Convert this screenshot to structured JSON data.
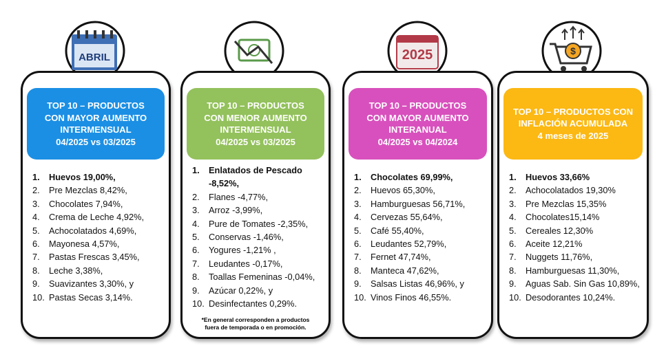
{
  "cards": [
    {
      "icon_label": "ABRIL",
      "header": [
        "TOP 10 – PRODUCTOS",
        "CON MAYOR AUMENTO",
        "INTERMENSUAL",
        "04/2025 vs  03/2025"
      ],
      "items": [
        {
          "n": "1.",
          "text": "Huevos 19,00%,"
        },
        {
          "n": "2.",
          "text": "Pre Mezclas 8,42%,"
        },
        {
          "n": "3.",
          "text": "Chocolates 7,94%,"
        },
        {
          "n": "4.",
          "text": "Crema de Leche 4,92%,"
        },
        {
          "n": "5.",
          "text": "Achocolatados 4,69%,"
        },
        {
          "n": "6.",
          "text": "Mayonesa 4,57%,"
        },
        {
          "n": "7.",
          "text": "Pastas Frescas 3,45%,"
        },
        {
          "n": "8.",
          "text": "Leche 3,38%,"
        },
        {
          "n": "9.",
          "text": "Suavizantes 3,30%, y"
        },
        {
          "n": "10.",
          "text": "Pastas Secas 3,14%."
        }
      ]
    },
    {
      "header": [
        "TOP 10 – PRODUCTOS",
        "CON MENOR AUMENTO",
        "INTERMENSUAL",
        "04/2025 vs  03/2025"
      ],
      "items": [
        {
          "n": "1.",
          "text": "Enlatados de Pescado -8,52%,"
        },
        {
          "n": "2.",
          "text": "Flanes -4,77%,"
        },
        {
          "n": "3.",
          "text": "Arroz -3,99%,"
        },
        {
          "n": "4.",
          "text": "Pure de Tomates -2,35%,"
        },
        {
          "n": "5.",
          "text": "Conservas -1,46%,"
        },
        {
          "n": "6.",
          "text": "Yogures -1,21% ,"
        },
        {
          "n": "7.",
          "text": "Leudantes -0,17%,"
        },
        {
          "n": "8.",
          "text": "Toallas Femeninas -0,04%,"
        },
        {
          "n": "9.",
          "text": "Azúcar 0,22%, y"
        },
        {
          "n": "10.",
          "text": "Desinfectantes 0,29%."
        }
      ],
      "note": [
        "*En general corresponden a productos",
        "fuera de temporada o en promoción."
      ]
    },
    {
      "icon_label": "2025",
      "header": [
        "TOP 10 – PRODUCTOS",
        "CON MAYOR AUMENTO",
        "INTERANUAL",
        "04/2025 vs  04/2024"
      ],
      "items": [
        {
          "n": "1.",
          "text": "Chocolates 69,99%,"
        },
        {
          "n": "2.",
          "text": "Huevos 65,30%,"
        },
        {
          "n": "3.",
          "text": "Hamburguesas 56,71%,"
        },
        {
          "n": "4.",
          "text": "Cervezas 55,64%,"
        },
        {
          "n": "5.",
          "text": "Café 55,40%,"
        },
        {
          "n": "6.",
          "text": "Leudantes 52,79%,"
        },
        {
          "n": "7.",
          "text": "Fernet 47,74%,"
        },
        {
          "n": "8.",
          "text": "Manteca 47,62%,"
        },
        {
          "n": "9.",
          "text": "Salsas Listas 46,96%, y"
        },
        {
          "n": "10.",
          "text": "Vinos Finos 46,55%."
        }
      ]
    },
    {
      "icon_label": "$",
      "header": [
        "TOP 10 – PRODUCTOS CON",
        "INFLACIÓN ACUMULADA",
        "4 meses de 2025"
      ],
      "items": [
        {
          "n": "1.",
          "text": "Huevos 33,66%"
        },
        {
          "n": "2.",
          "text": "Achocolatados 19,30%"
        },
        {
          "n": "3.",
          "text": "Pre Mezclas 15,35%"
        },
        {
          "n": "4.",
          "text": "Chocolates15,14%"
        },
        {
          "n": "5.",
          "text": "Cereales 12,30%"
        },
        {
          "n": "6.",
          "text": "Aceite 12,21%"
        },
        {
          "n": "7.",
          "text": "Nuggets 11,76%,"
        },
        {
          "n": "8.",
          "text": "Hamburguesas 11,30%,"
        },
        {
          "n": "9.",
          "text": "Aguas Sab. Sin Gas 10,89%,"
        },
        {
          "n": "10.",
          "text": "Desodorantes 10,24%."
        }
      ]
    }
  ]
}
